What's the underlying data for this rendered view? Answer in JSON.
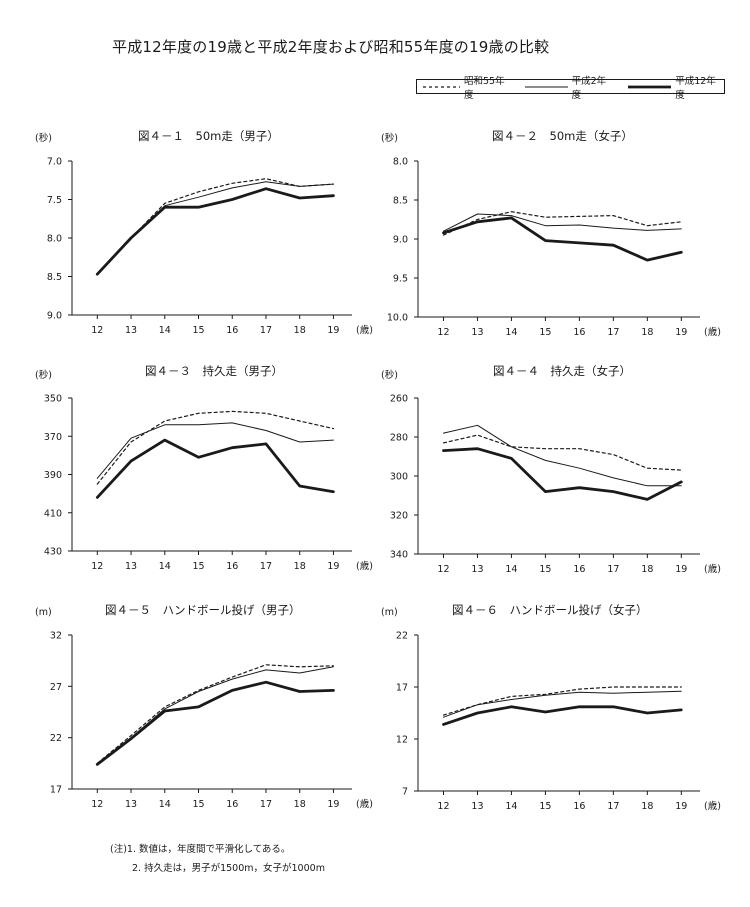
{
  "title": "平成12年度の19歳と平成2年度および昭和55年度の19歳の比較",
  "legend": [
    {
      "name": "昭和55年度",
      "style": "dotted"
    },
    {
      "name": "平成2年度",
      "style": "thin"
    },
    {
      "name": "平成12年度",
      "style": "thick"
    }
  ],
  "notes": {
    "line1": "(注)1. 数値は，年度間で平滑化してある。",
    "line2": "2. 持久走は，男子が1500m，女子が1000m"
  },
  "chart_data": [
    {
      "type": "line",
      "title": "図４－１　50m走（男子）",
      "unit": "(秒)",
      "xunit": "(歳)",
      "x": [
        12,
        13,
        14,
        15,
        16,
        17,
        18,
        19
      ],
      "ylim": [
        9.0,
        7.0
      ],
      "inverted": true,
      "yticks": [
        "7.0",
        "7.5",
        "8.0",
        "8.5",
        "9.0"
      ],
      "series": [
        {
          "name": "昭和55年度",
          "values": [
            8.47,
            8.0,
            7.55,
            7.4,
            7.29,
            7.23,
            7.33,
            7.3
          ]
        },
        {
          "name": "平成2年度",
          "values": [
            8.47,
            8.0,
            7.58,
            7.47,
            7.35,
            7.27,
            7.33,
            7.3
          ]
        },
        {
          "name": "平成12年度",
          "values": [
            8.47,
            8.0,
            7.6,
            7.6,
            7.5,
            7.36,
            7.48,
            7.45
          ]
        }
      ]
    },
    {
      "type": "line",
      "title": "図４－２　50m走（女子）",
      "unit": "(秒)",
      "xunit": "(歳)",
      "x": [
        12,
        13,
        14,
        15,
        16,
        17,
        18,
        19
      ],
      "ylim": [
        10.0,
        8.0
      ],
      "inverted": true,
      "yticks": [
        "8.0",
        "8.5",
        "9.0",
        "9.5",
        "10.0"
      ],
      "series": [
        {
          "name": "昭和55年度",
          "values": [
            8.95,
            8.75,
            8.65,
            8.72,
            8.71,
            8.7,
            8.83,
            8.78
          ]
        },
        {
          "name": "平成2年度",
          "values": [
            8.9,
            8.68,
            8.7,
            8.83,
            8.82,
            8.86,
            8.89,
            8.87
          ]
        },
        {
          "name": "平成12年度",
          "values": [
            8.92,
            8.78,
            8.73,
            9.02,
            9.05,
            9.08,
            9.27,
            9.17
          ]
        }
      ]
    },
    {
      "type": "line",
      "title": "図４－３　持久走（男子）",
      "unit": "(秒)",
      "xunit": "(歳)",
      "x": [
        12,
        13,
        14,
        15,
        16,
        17,
        18,
        19
      ],
      "ylim": [
        430,
        350
      ],
      "inverted": true,
      "yticks": [
        "350",
        "370",
        "390",
        "410",
        "430"
      ],
      "series": [
        {
          "name": "昭和55年度",
          "values": [
            395,
            373,
            362,
            358,
            357,
            358,
            362,
            366
          ]
        },
        {
          "name": "平成2年度",
          "values": [
            392,
            371,
            364,
            364,
            363,
            367,
            373,
            372
          ]
        },
        {
          "name": "平成12年度",
          "values": [
            402,
            383,
            372,
            381,
            376,
            374,
            396,
            399
          ]
        }
      ]
    },
    {
      "type": "line",
      "title": "図４－４　持久走（女子）",
      "unit": "(秒)",
      "xunit": "(歳)",
      "x": [
        12,
        13,
        14,
        15,
        16,
        17,
        18,
        19
      ],
      "ylim": [
        340,
        260
      ],
      "inverted": true,
      "yticks": [
        "260",
        "280",
        "300",
        "320",
        "340"
      ],
      "series": [
        {
          "name": "昭和55年度",
          "values": [
            283,
            279,
            285,
            286,
            286,
            289,
            296,
            297
          ]
        },
        {
          "name": "平成2年度",
          "values": [
            278,
            274,
            285,
            292,
            296,
            301,
            305,
            305
          ]
        },
        {
          "name": "平成12年度",
          "values": [
            287,
            286,
            291,
            308,
            306,
            308,
            312,
            303
          ]
        }
      ]
    },
    {
      "type": "line",
      "title": "図４－５　ハンドボール投げ（男子）",
      "unit": "(m)",
      "xunit": "(歳)",
      "x": [
        12,
        13,
        14,
        15,
        16,
        17,
        18,
        19
      ],
      "ylim": [
        17,
        32
      ],
      "inverted": false,
      "yticks": [
        "32",
        "27",
        "22",
        "17"
      ],
      "series": [
        {
          "name": "昭和55年度",
          "values": [
            19.5,
            22.2,
            25.0,
            26.6,
            27.9,
            29.1,
            28.9,
            29.0
          ]
        },
        {
          "name": "平成2年度",
          "values": [
            19.5,
            22.0,
            24.8,
            26.5,
            27.7,
            28.6,
            28.3,
            28.9
          ]
        },
        {
          "name": "平成12年度",
          "values": [
            19.4,
            21.9,
            24.6,
            25.0,
            26.6,
            27.4,
            26.5,
            26.6
          ]
        }
      ]
    },
    {
      "type": "line",
      "title": "図４－６　ハンドボール投げ（女子）",
      "unit": "(m)",
      "xunit": "(歳)",
      "x": [
        12,
        13,
        14,
        15,
        16,
        17,
        18,
        19
      ],
      "ylim": [
        7,
        22
      ],
      "inverted": false,
      "yticks": [
        "22",
        "17",
        "12",
        "7"
      ],
      "series": [
        {
          "name": "昭和55年度",
          "values": [
            14.3,
            15.3,
            16.1,
            16.3,
            16.8,
            17.0,
            17.0,
            17.0
          ]
        },
        {
          "name": "平成2年度",
          "values": [
            14.1,
            15.3,
            15.8,
            16.2,
            16.5,
            16.4,
            16.5,
            16.6
          ]
        },
        {
          "name": "平成12年度",
          "values": [
            13.4,
            14.5,
            15.1,
            14.6,
            15.1,
            15.1,
            14.5,
            14.8
          ]
        }
      ]
    }
  ]
}
